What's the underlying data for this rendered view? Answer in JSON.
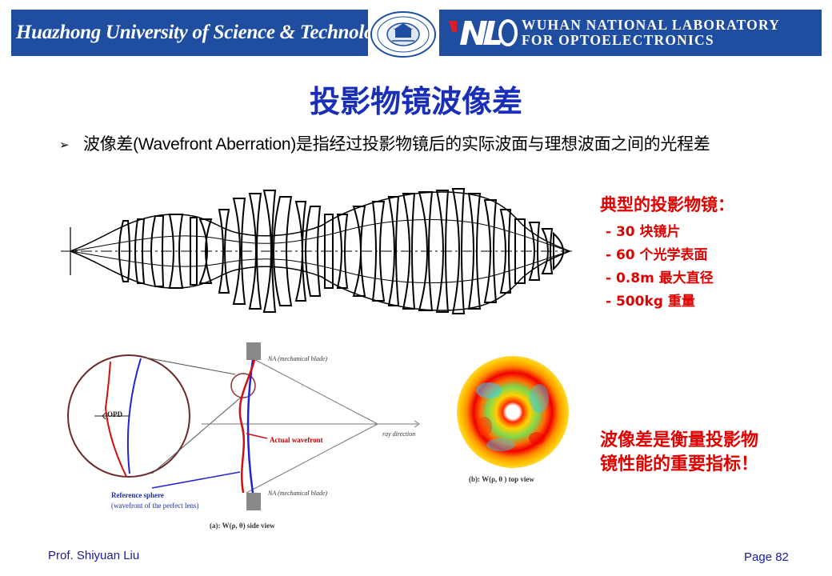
{
  "header": {
    "university": "Huazhong University of Science & Technology",
    "lab_line1": "WUHAN NATIONAL LABORATORY",
    "lab_line2": "FOR OPTOELECTRONICS",
    "brand_color": "#1f4ea0"
  },
  "title": "投影物镜波像差",
  "bullet_icon": "arrow-bullet-icon",
  "definition": "波像差(Wavefront Aberration)是指经过投影物镜后的实际波面与理想波面之间的光程差",
  "lens_info": {
    "title": "典型的投影物镜：",
    "items": [
      "- 30 块镜片",
      "- 60 个光学表面",
      "- 0.8m 最大直径",
      "- 500kg 重量"
    ]
  },
  "figure_a": {
    "na_top": "NA (mechanical blade)",
    "na_bottom": "NA (mechanical blade)",
    "opd": "OPD",
    "actual_wavefront": "Actual wavefront",
    "ray_direction": "ray direction",
    "reference_sphere": "Reference sphere",
    "reference_sphere_note": "(wavefront of the perfect lens)",
    "caption": "(a): W(ρ, θ) side view"
  },
  "figure_b": {
    "caption": "(b): W(ρ, θ ) top view"
  },
  "conclusion": [
    "波像差是衡量投影物",
    "镜性能的重要指标！"
  ],
  "footer": {
    "author": "Prof. Shiyuan Liu",
    "page": "Page 82"
  },
  "colors": {
    "title": "#1a2fb8",
    "accent_red": "#e00000",
    "footer": "#1a1aa0"
  }
}
